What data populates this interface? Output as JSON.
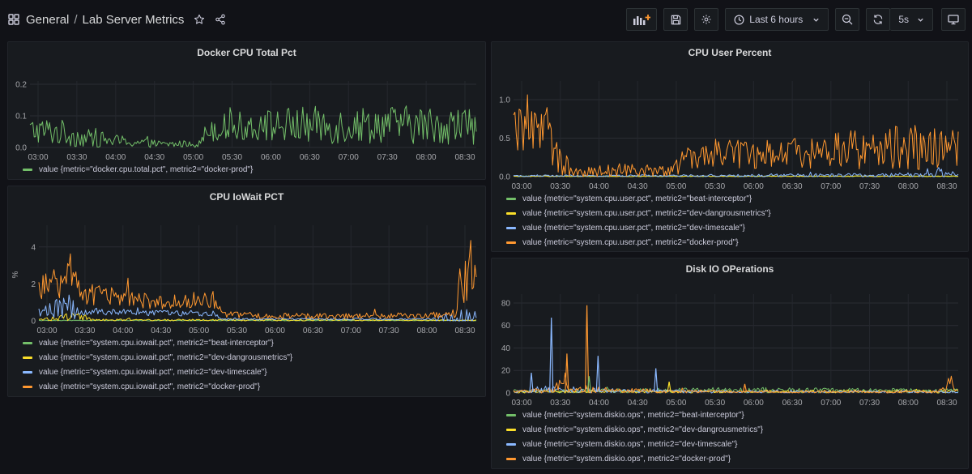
{
  "header": {
    "folder": "General",
    "separator": "/",
    "title": "Lab Server Metrics",
    "time_range": "Last 6 hours",
    "refresh": "5s",
    "icons": [
      "grid-icon",
      "star-icon",
      "share-icon",
      "add-panel-icon",
      "save-icon",
      "settings-icon",
      "clock-icon",
      "zoom-out-icon",
      "refresh-icon",
      "tv-mode-icon"
    ]
  },
  "colors": {
    "beat-interceptor": "#73bf69",
    "dev-dangrousmetrics": "#fade2a",
    "dev-timescale": "#8ab8ff",
    "docker-prod": "#ff9830"
  },
  "time_ticks": [
    "03:00",
    "03:30",
    "04:00",
    "04:30",
    "05:00",
    "05:30",
    "06:00",
    "06:30",
    "07:00",
    "07:30",
    "08:00",
    "08:30"
  ],
  "panels": [
    {
      "id": "docker-cpu",
      "title": "Docker CPU Total Pct",
      "chart_data": {
        "type": "line",
        "title": "Docker CPU Total Pct",
        "x": [
          "03:00",
          "03:30",
          "04:00",
          "04:30",
          "05:00",
          "05:30",
          "06:00",
          "06:30",
          "07:00",
          "07:30",
          "08:00",
          "08:30"
        ],
        "ylim": [
          0,
          0.2
        ],
        "yticks": [
          "0.0",
          "0.1",
          "0.2"
        ],
        "series": [
          {
            "name": "value {metric=\"docker.cpu.total.pct\", metric2=\"docker-prod\"}",
            "color": "#73bf69",
            "profile": [
              [
                0,
                0.055,
                0.04
              ],
              [
                0.06,
                0.05,
                0.045
              ],
              [
                0.12,
                0.03,
                0.03
              ],
              [
                0.2,
                0.02,
                0.02
              ],
              [
                0.3,
                0.01,
                0.01
              ],
              [
                0.38,
                0.012,
                0.012
              ],
              [
                0.4,
                0.06,
                0.04
              ],
              [
                0.5,
                0.07,
                0.05
              ],
              [
                0.6,
                0.07,
                0.06
              ],
              [
                0.7,
                0.07,
                0.06
              ],
              [
                0.8,
                0.075,
                0.06
              ],
              [
                0.9,
                0.07,
                0.06
              ],
              [
                1,
                0.07,
                0.06
              ]
            ]
          }
        ]
      }
    },
    {
      "id": "cpu-user",
      "title": "CPU User Percent",
      "chart_data": {
        "type": "line",
        "title": "CPU User Percent",
        "x": [
          "03:00",
          "03:30",
          "04:00",
          "04:30",
          "05:00",
          "05:30",
          "06:00",
          "06:30",
          "07:00",
          "07:30",
          "08:00",
          "08:30"
        ],
        "ylim": [
          0,
          1.2
        ],
        "yticks": [
          "0.0",
          "0.5",
          "1.0"
        ],
        "series": [
          {
            "name": "value {metric=\"system.cpu.user.pct\", metric2=\"beat-interceptor\"}",
            "color": "#73bf69",
            "profile": [
              [
                0,
                0.005,
                0.005
              ],
              [
                1,
                0.005,
                0.005
              ]
            ]
          },
          {
            "name": "value {metric=\"system.cpu.user.pct\", metric2=\"dev-dangrousmetrics\"}",
            "color": "#fade2a",
            "profile": [
              [
                0,
                0.005,
                0.005
              ],
              [
                1,
                0.005,
                0.005
              ]
            ]
          },
          {
            "name": "value {metric=\"system.cpu.user.pct\", metric2=\"dev-timescale\"}",
            "color": "#8ab8ff",
            "profile": [
              [
                0,
                0.01,
                0.01
              ],
              [
                0.5,
                0.015,
                0.015
              ],
              [
                0.9,
                0.02,
                0.03
              ],
              [
                0.97,
                0.03,
                0.08
              ],
              [
                1,
                0.06,
                0.05
              ]
            ]
          },
          {
            "name": "value {metric=\"system.cpu.user.pct\", metric2=\"docker-prod\"}",
            "color": "#ff9830",
            "profile": [
              [
                0,
                0.6,
                0.35
              ],
              [
                0.07,
                0.55,
                0.3
              ],
              [
                0.1,
                0.3,
                0.3
              ],
              [
                0.13,
                0.05,
                0.05
              ],
              [
                0.25,
                0.08,
                0.1
              ],
              [
                0.35,
                0.06,
                0.07
              ],
              [
                0.38,
                0.2,
                0.15
              ],
              [
                0.45,
                0.3,
                0.2
              ],
              [
                0.6,
                0.32,
                0.22
              ],
              [
                0.75,
                0.35,
                0.25
              ],
              [
                0.85,
                0.38,
                0.3
              ],
              [
                1,
                0.35,
                0.25
              ]
            ]
          }
        ]
      }
    },
    {
      "id": "cpu-iowait",
      "title": "CPU IoWait PCT",
      "chart_data": {
        "type": "line",
        "title": "CPU IoWait PCT",
        "x": [
          "03:00",
          "03:30",
          "04:00",
          "04:30",
          "05:00",
          "05:30",
          "06:00",
          "06:30",
          "07:00",
          "07:30",
          "08:00",
          "08:30"
        ],
        "ylim": [
          0,
          5
        ],
        "yticks": [
          "0",
          "2",
          "4"
        ],
        "ylabel": "%",
        "series": [
          {
            "name": "value {metric=\"system.cpu.iowait.pct\", metric2=\"beat-interceptor\"}",
            "color": "#73bf69",
            "profile": [
              [
                0,
                0.02,
                0.02
              ],
              [
                1,
                0.02,
                0.02
              ]
            ]
          },
          {
            "name": "value {metric=\"system.cpu.iowait.pct\", metric2=\"dev-dangrousmetrics\"}",
            "color": "#fade2a",
            "profile": [
              [
                0,
                0.05,
                0.05
              ],
              [
                0.1,
                0.3,
                0.3
              ],
              [
                0.12,
                0.05,
                0.05
              ],
              [
                1,
                0.03,
                0.03
              ]
            ]
          },
          {
            "name": "value {metric=\"system.cpu.iowait.pct\", metric2=\"dev-timescale\"}",
            "color": "#8ab8ff",
            "profile": [
              [
                0,
                0.5,
                0.25
              ],
              [
                0.08,
                0.8,
                0.8
              ],
              [
                0.1,
                0.5,
                0.2
              ],
              [
                0.4,
                0.4,
                0.15
              ],
              [
                0.42,
                0.1,
                0.05
              ],
              [
                0.9,
                0.1,
                0.05
              ],
              [
                0.98,
                0.1,
                0.6
              ],
              [
                1,
                0.3,
                0.3
              ]
            ]
          },
          {
            "name": "value {metric=\"system.cpu.iowait.pct\", metric2=\"docker-prod\"}",
            "color": "#ff9830",
            "profile": [
              [
                0,
                1.7,
                0.6
              ],
              [
                0.07,
                2.5,
                1.5
              ],
              [
                0.1,
                1.5,
                0.6
              ],
              [
                0.2,
                1.2,
                0.5
              ],
              [
                0.3,
                1.0,
                0.4
              ],
              [
                0.4,
                1.2,
                0.5
              ],
              [
                0.42,
                0.35,
                0.2
              ],
              [
                0.6,
                0.25,
                0.15
              ],
              [
                0.85,
                0.3,
                0.15
              ],
              [
                0.95,
                0.3,
                0.2
              ],
              [
                0.97,
                2.5,
                2.0
              ],
              [
                1,
                3.0,
                1.5
              ]
            ]
          }
        ]
      }
    },
    {
      "id": "disk-io",
      "title": "Disk IO OPerations",
      "chart_data": {
        "type": "line",
        "title": "Disk IO OPerations",
        "x": [
          "03:00",
          "03:30",
          "04:00",
          "04:30",
          "05:00",
          "05:30",
          "06:00",
          "06:30",
          "07:00",
          "07:30",
          "08:00",
          "08:30"
        ],
        "ylim": [
          0,
          85
        ],
        "yticks": [
          "0",
          "20",
          "40",
          "60",
          "80"
        ],
        "series": [
          {
            "name": "value {metric=\"system.diskio.ops\", metric2=\"beat-interceptor\"}",
            "color": "#73bf69",
            "profile": [
              [
                0,
                1.5,
                1.5
              ],
              [
                0.5,
                2.5,
                2.5
              ],
              [
                1,
                2,
                2
              ]
            ]
          },
          {
            "name": "value {metric=\"system.diskio.ops\", metric2=\"dev-dangrousmetrics\"}",
            "color": "#fade2a",
            "profile": [
              [
                0,
                1,
                1
              ],
              [
                1,
                1.5,
                1.5
              ]
            ]
          },
          {
            "name": "value {metric=\"system.diskio.ops\", metric2=\"dev-timescale\"}",
            "color": "#8ab8ff",
            "profile": [
              [
                0,
                1,
                1
              ],
              [
                0.1,
                3,
                3
              ],
              [
                0.3,
                1.5,
                1.5
              ],
              [
                1,
                1,
                1
              ]
            ]
          },
          {
            "name": "value {metric=\"system.diskio.ops\", metric2=\"docker-prod\"}",
            "color": "#ff9830",
            "profile": [
              [
                0,
                0.8,
                0.8
              ],
              [
                0.08,
                3,
                3
              ],
              [
                0.11,
                10,
                8
              ],
              [
                0.13,
                3,
                3
              ],
              [
                0.5,
                1,
                1
              ],
              [
                0.95,
                1,
                1
              ],
              [
                0.98,
                8,
                8
              ],
              [
                1,
                3,
                3
              ]
            ]
          }
        ],
        "spikes": [
          {
            "series": 2,
            "x": 0.085,
            "value": 67
          },
          {
            "series": 3,
            "x": 0.165,
            "value": 78
          },
          {
            "series": 3,
            "x": 0.12,
            "value": 35
          },
          {
            "series": 2,
            "x": 0.19,
            "value": 33
          },
          {
            "series": 0,
            "x": 0.17,
            "value": 15
          },
          {
            "series": 2,
            "x": 0.04,
            "value": 18
          },
          {
            "series": 2,
            "x": 0.32,
            "value": 22
          },
          {
            "series": 1,
            "x": 0.35,
            "value": 10
          },
          {
            "series": 3,
            "x": 0.52,
            "value": 8
          }
        ]
      }
    }
  ]
}
